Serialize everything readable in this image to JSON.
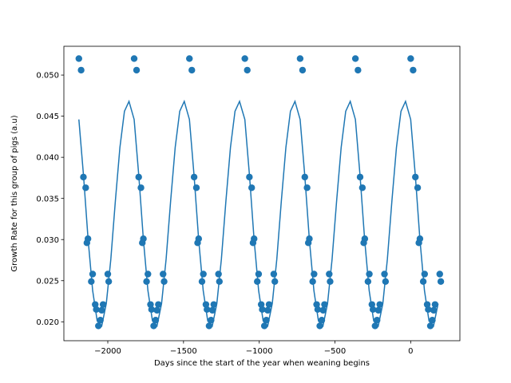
{
  "chart_data": {
    "type": "scatter",
    "title": "",
    "xlabel": "Days since the start of the year when weaning begins",
    "ylabel": "Growth Rate for this group of pigs (a.u)",
    "xlim": [
      -2290,
      325
    ],
    "ylim": [
      0.0177,
      0.0535
    ],
    "xticks": [
      -2000,
      -1500,
      -1000,
      -500,
      0
    ],
    "xtick_labels": [
      "−2000",
      "−1500",
      "−1000",
      "−500",
      "0"
    ],
    "yticks": [
      0.02,
      0.025,
      0.03,
      0.035,
      0.04,
      0.045,
      0.05
    ],
    "ytick_labels": [
      "0.020",
      "0.025",
      "0.030",
      "0.035",
      "0.040",
      "0.045",
      "0.050"
    ],
    "grid": false,
    "legend": false,
    "colors": {
      "series": "#1f77b4",
      "axes": "#000000",
      "background": "#ffffff"
    },
    "series": [
      {
        "kind": "scatter",
        "x": [
          -2191,
          -2176,
          -2161,
          -2146,
          -2138,
          -2131,
          -2109,
          -2100,
          -2083,
          -2076,
          -2062,
          -2049,
          -2040,
          -2031,
          -2000,
          -1994,
          -1826,
          -1810,
          -1796,
          -1781,
          -1772,
          -1765,
          -1744,
          -1735,
          -1718,
          -1711,
          -1697,
          -1684,
          -1675,
          -1666,
          -1635,
          -1628,
          -1461,
          -1445,
          -1430,
          -1415,
          -1407,
          -1400,
          -1378,
          -1369,
          -1352,
          -1345,
          -1331,
          -1318,
          -1309,
          -1300,
          -1269,
          -1263,
          -1095,
          -1079,
          -1065,
          -1050,
          -1041,
          -1034,
          -1013,
          -1004,
          -987,
          -980,
          -966,
          -953,
          -944,
          -935,
          -904,
          -897,
          -730,
          -714,
          -699,
          -684,
          -676,
          -669,
          -647,
          -638,
          -621,
          -614,
          -600,
          -587,
          -578,
          -569,
          -538,
          -532,
          -365,
          -348,
          -334,
          -319,
          -310,
          -303,
          -282,
          -273,
          -256,
          -249,
          -235,
          -222,
          -213,
          -204,
          -173,
          -166,
          0,
          16,
          31,
          46,
          54,
          61,
          83,
          92,
          109,
          116,
          130,
          143,
          152,
          161,
          192,
          199
        ],
        "y": [
          0.052,
          0.0506,
          0.0376,
          0.0363,
          0.0296,
          0.0301,
          0.0249,
          0.0258,
          0.0221,
          0.0215,
          0.0195,
          0.0202,
          0.0214,
          0.0221,
          0.0258,
          0.0249,
          0.052,
          0.0506,
          0.0376,
          0.0363,
          0.0296,
          0.0301,
          0.0249,
          0.0258,
          0.0221,
          0.0215,
          0.0195,
          0.0202,
          0.0214,
          0.0221,
          0.0258,
          0.0249,
          0.052,
          0.0506,
          0.0376,
          0.0363,
          0.0296,
          0.0301,
          0.0249,
          0.0258,
          0.0221,
          0.0215,
          0.0195,
          0.0202,
          0.0214,
          0.0221,
          0.0258,
          0.0249,
          0.052,
          0.0506,
          0.0376,
          0.0363,
          0.0296,
          0.0301,
          0.0249,
          0.0258,
          0.0221,
          0.0215,
          0.0195,
          0.0202,
          0.0214,
          0.0221,
          0.0258,
          0.0249,
          0.052,
          0.0506,
          0.0376,
          0.0363,
          0.0296,
          0.0301,
          0.0249,
          0.0258,
          0.0221,
          0.0215,
          0.0195,
          0.0202,
          0.0214,
          0.0221,
          0.0258,
          0.0249,
          0.052,
          0.0506,
          0.0376,
          0.0363,
          0.0296,
          0.0301,
          0.0249,
          0.0258,
          0.0221,
          0.0215,
          0.0195,
          0.0202,
          0.0214,
          0.0221,
          0.0258,
          0.0249,
          0.052,
          0.0506,
          0.0376,
          0.0363,
          0.0296,
          0.0301,
          0.0249,
          0.0258,
          0.0221,
          0.0215,
          0.0195,
          0.0202,
          0.0214,
          0.0221,
          0.0258,
          0.0249
        ]
      },
      {
        "kind": "line",
        "x": [
          -2191,
          -2160,
          -2130,
          -2100,
          -2070,
          -2040,
          -2010,
          -1980,
          -1950,
          -1920,
          -1890,
          -1860,
          -1826,
          -1795,
          -1765,
          -1735,
          -1705,
          -1675,
          -1645,
          -1615,
          -1585,
          -1555,
          -1525,
          -1495,
          -1461,
          -1430,
          -1400,
          -1370,
          -1340,
          -1310,
          -1280,
          -1250,
          -1220,
          -1190,
          -1160,
          -1130,
          -1095,
          -1064,
          -1034,
          -1004,
          -974,
          -944,
          -914,
          -884,
          -854,
          -824,
          -794,
          -764,
          -730,
          -699,
          -669,
          -639,
          -609,
          -579,
          -549,
          -519,
          -489,
          -459,
          -429,
          -399,
          -365,
          -334,
          -304,
          -274,
          -244,
          -214,
          -184,
          -154,
          -124,
          -94,
          -64,
          -34,
          0,
          31,
          61,
          91,
          121,
          151,
          181
        ],
        "y": [
          0.0446,
          0.0377,
          0.03,
          0.0238,
          0.0201,
          0.0195,
          0.0222,
          0.0276,
          0.0347,
          0.0412,
          0.0456,
          0.0468,
          0.0446,
          0.0377,
          0.03,
          0.0238,
          0.0201,
          0.0195,
          0.0222,
          0.0276,
          0.0347,
          0.0412,
          0.0456,
          0.0468,
          0.0446,
          0.0377,
          0.03,
          0.0238,
          0.0201,
          0.0195,
          0.0222,
          0.0276,
          0.0347,
          0.0412,
          0.0456,
          0.0468,
          0.0446,
          0.0377,
          0.03,
          0.0238,
          0.0201,
          0.0195,
          0.0222,
          0.0276,
          0.0347,
          0.0412,
          0.0456,
          0.0468,
          0.0446,
          0.0377,
          0.03,
          0.0238,
          0.0201,
          0.0195,
          0.0222,
          0.0276,
          0.0347,
          0.0412,
          0.0456,
          0.0468,
          0.0446,
          0.0377,
          0.03,
          0.0238,
          0.0201,
          0.0195,
          0.0222,
          0.0276,
          0.0347,
          0.0412,
          0.0456,
          0.0468,
          0.0446,
          0.0377,
          0.03,
          0.0238,
          0.0201,
          0.0195,
          0.0222
        ]
      }
    ]
  }
}
